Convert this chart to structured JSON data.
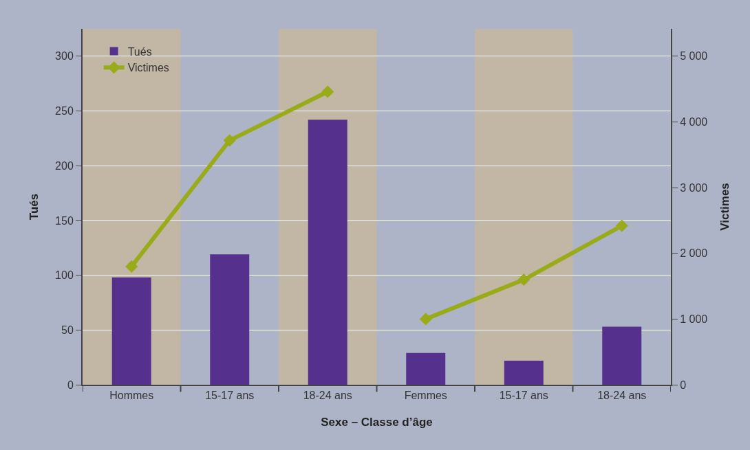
{
  "chart_data": {
    "type": "bar",
    "xlabel": "Sexe – Classe d’âge",
    "ylabel": "Tués",
    "y2label": "Victimes",
    "categories": [
      "Hommes",
      "15-17 ans",
      "18-24 ans",
      "Femmes",
      "15-17 ans",
      "18-24 ans"
    ],
    "series": [
      {
        "name": "Tués",
        "color": "#55308d",
        "values": [
          98,
          119,
          242,
          29,
          22,
          53
        ]
      },
      {
        "name": "Victimes",
        "type": "line",
        "axis": "y2",
        "color": "#9aab1a",
        "marker": "diamond",
        "values": [
          1800,
          3720,
          4460,
          null,
          null,
          null
        ]
      },
      {
        "type": "line",
        "axis": "y2",
        "color": "#9aab1a",
        "marker": "diamond",
        "values": [
          null,
          null,
          null,
          1000,
          1600,
          2420
        ]
      }
    ],
    "ylim": [
      0,
      325
    ],
    "yticks": [
      0,
      50,
      100,
      150,
      200,
      250,
      300
    ],
    "y2lim": [
      0,
      5417
    ],
    "y2ticks": [
      0,
      {
        "value": 1000,
        "label": "1 000"
      },
      {
        "value": 2000,
        "label": "2 000"
      },
      {
        "value": 3000,
        "label": "3 000"
      },
      {
        "value": 4000,
        "label": "4 000"
      },
      {
        "value": 5000,
        "label": "5 000"
      }
    ],
    "grid": "y",
    "legend": "top left"
  }
}
